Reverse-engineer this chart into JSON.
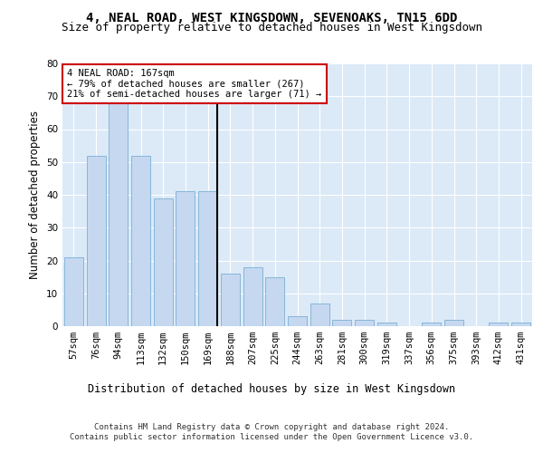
{
  "title1": "4, NEAL ROAD, WEST KINGSDOWN, SEVENOAKS, TN15 6DD",
  "title2": "Size of property relative to detached houses in West Kingsdown",
  "xlabel": "Distribution of detached houses by size in West Kingsdown",
  "ylabel": "Number of detached properties",
  "categories": [
    "57sqm",
    "76sqm",
    "94sqm",
    "113sqm",
    "132sqm",
    "150sqm",
    "169sqm",
    "188sqm",
    "207sqm",
    "225sqm",
    "244sqm",
    "263sqm",
    "281sqm",
    "300sqm",
    "319sqm",
    "337sqm",
    "356sqm",
    "375sqm",
    "393sqm",
    "412sqm",
    "431sqm"
  ],
  "values": [
    21,
    52,
    68,
    52,
    39,
    41,
    41,
    16,
    18,
    15,
    3,
    7,
    2,
    2,
    1,
    0,
    1,
    2,
    0,
    1,
    1
  ],
  "bar_color": "#c5d8f0",
  "bar_edge_color": "#7aafd4",
  "property_line_index": 6,
  "annotation_text": "4 NEAL ROAD: 167sqm\n← 79% of detached houses are smaller (267)\n21% of semi-detached houses are larger (71) →",
  "annotation_box_facecolor": "#ffffff",
  "annotation_box_edgecolor": "#cc0000",
  "vline_color": "#000000",
  "ylim": [
    0,
    80
  ],
  "yticks": [
    0,
    10,
    20,
    30,
    40,
    50,
    60,
    70,
    80
  ],
  "plot_bg_color": "#dce9f7",
  "grid_color": "#ffffff",
  "footer_text": "Contains HM Land Registry data © Crown copyright and database right 2024.\nContains public sector information licensed under the Open Government Licence v3.0.",
  "title1_fontsize": 10,
  "title2_fontsize": 9,
  "xlabel_fontsize": 8.5,
  "ylabel_fontsize": 8.5,
  "tick_fontsize": 7.5,
  "footer_fontsize": 6.5
}
